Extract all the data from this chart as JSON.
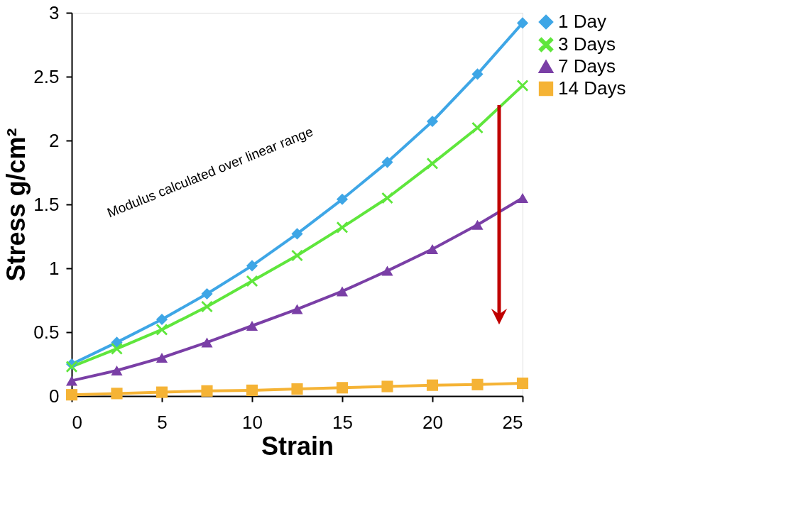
{
  "chart_data": {
    "type": "line",
    "xlabel": "Strain",
    "ylabel": "Stress g/cm²",
    "x": [
      0,
      2.5,
      5,
      7.5,
      10,
      12.5,
      15,
      17.5,
      20,
      22.5,
      25
    ],
    "series": [
      {
        "name": "1 Day",
        "color": "#3ea6e6",
        "marker": "diamond",
        "values": [
          0.25,
          0.42,
          0.6,
          0.8,
          1.02,
          1.27,
          1.54,
          1.83,
          2.15,
          2.52,
          2.92
        ]
      },
      {
        "name": "3 Days",
        "color": "#5fe63c",
        "marker": "cross",
        "values": [
          0.23,
          0.37,
          0.52,
          0.7,
          0.9,
          1.1,
          1.32,
          1.55,
          1.82,
          2.1,
          2.43
        ]
      },
      {
        "name": "7 Days",
        "color": "#7a3fa6",
        "marker": "triangle",
        "values": [
          0.12,
          0.2,
          0.3,
          0.42,
          0.55,
          0.68,
          0.82,
          0.98,
          1.15,
          1.34,
          1.55
        ]
      },
      {
        "name": "14 Days",
        "color": "#f5b335",
        "marker": "square",
        "values": [
          0.01,
          0.02,
          0.03,
          0.04,
          0.045,
          0.055,
          0.065,
          0.075,
          0.085,
          0.09,
          0.1
        ]
      }
    ],
    "xlim": [
      0,
      25
    ],
    "xticks": [
      0,
      5,
      10,
      15,
      20,
      25
    ],
    "ylim": [
      0,
      3
    ],
    "yticks": [
      0,
      0.5,
      1,
      1.5,
      2,
      2.5,
      3
    ],
    "grid": false,
    "legend": "right",
    "line_style": "solid",
    "annotations": [
      "Modulus calculated over linear range"
    ]
  }
}
